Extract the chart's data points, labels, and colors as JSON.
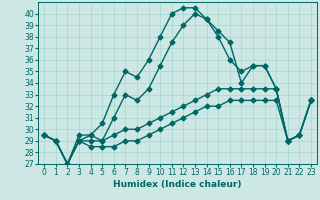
{
  "xlabel": "Humidex (Indice chaleur)",
  "x_values": [
    0,
    1,
    2,
    3,
    4,
    5,
    6,
    7,
    8,
    9,
    10,
    11,
    12,
    13,
    14,
    15,
    16,
    17,
    18,
    19,
    20,
    21,
    22,
    23
  ],
  "line1": [
    29.5,
    29.0,
    27.0,
    29.5,
    29.5,
    30.5,
    33.0,
    35.0,
    34.5,
    36.0,
    38.0,
    40.0,
    40.5,
    40.5,
    39.5,
    38.5,
    37.5,
    34.0,
    35.5,
    35.5,
    33.5,
    29.0,
    29.5,
    32.5
  ],
  "line2": [
    29.5,
    29.0,
    27.0,
    29.0,
    29.5,
    29.0,
    31.0,
    33.0,
    32.5,
    33.5,
    35.5,
    37.5,
    39.0,
    40.0,
    39.5,
    38.0,
    36.0,
    35.0,
    35.5,
    35.5,
    33.5,
    29.0,
    29.5,
    32.5
  ],
  "line3": [
    29.5,
    29.0,
    27.0,
    29.0,
    29.0,
    29.0,
    29.5,
    30.0,
    30.0,
    30.5,
    31.0,
    31.5,
    32.0,
    32.5,
    33.0,
    33.5,
    33.5,
    33.5,
    33.5,
    33.5,
    33.5,
    29.0,
    29.5,
    32.5
  ],
  "line4": [
    29.5,
    29.0,
    27.0,
    29.0,
    28.5,
    28.5,
    28.5,
    29.0,
    29.0,
    29.5,
    30.0,
    30.5,
    31.0,
    31.5,
    32.0,
    32.0,
    32.5,
    32.5,
    32.5,
    32.5,
    32.5,
    29.0,
    29.5,
    32.5
  ],
  "ylim": [
    27,
    41
  ],
  "xlim": [
    -0.5,
    23.5
  ],
  "bg_color": "#cde8e4",
  "line_color": "#006666",
  "grid_color": "#a8d4cf",
  "marker": "D",
  "markersize": 2.5,
  "linewidth": 1.0,
  "label_fontsize": 6.5,
  "tick_fontsize": 5.5
}
